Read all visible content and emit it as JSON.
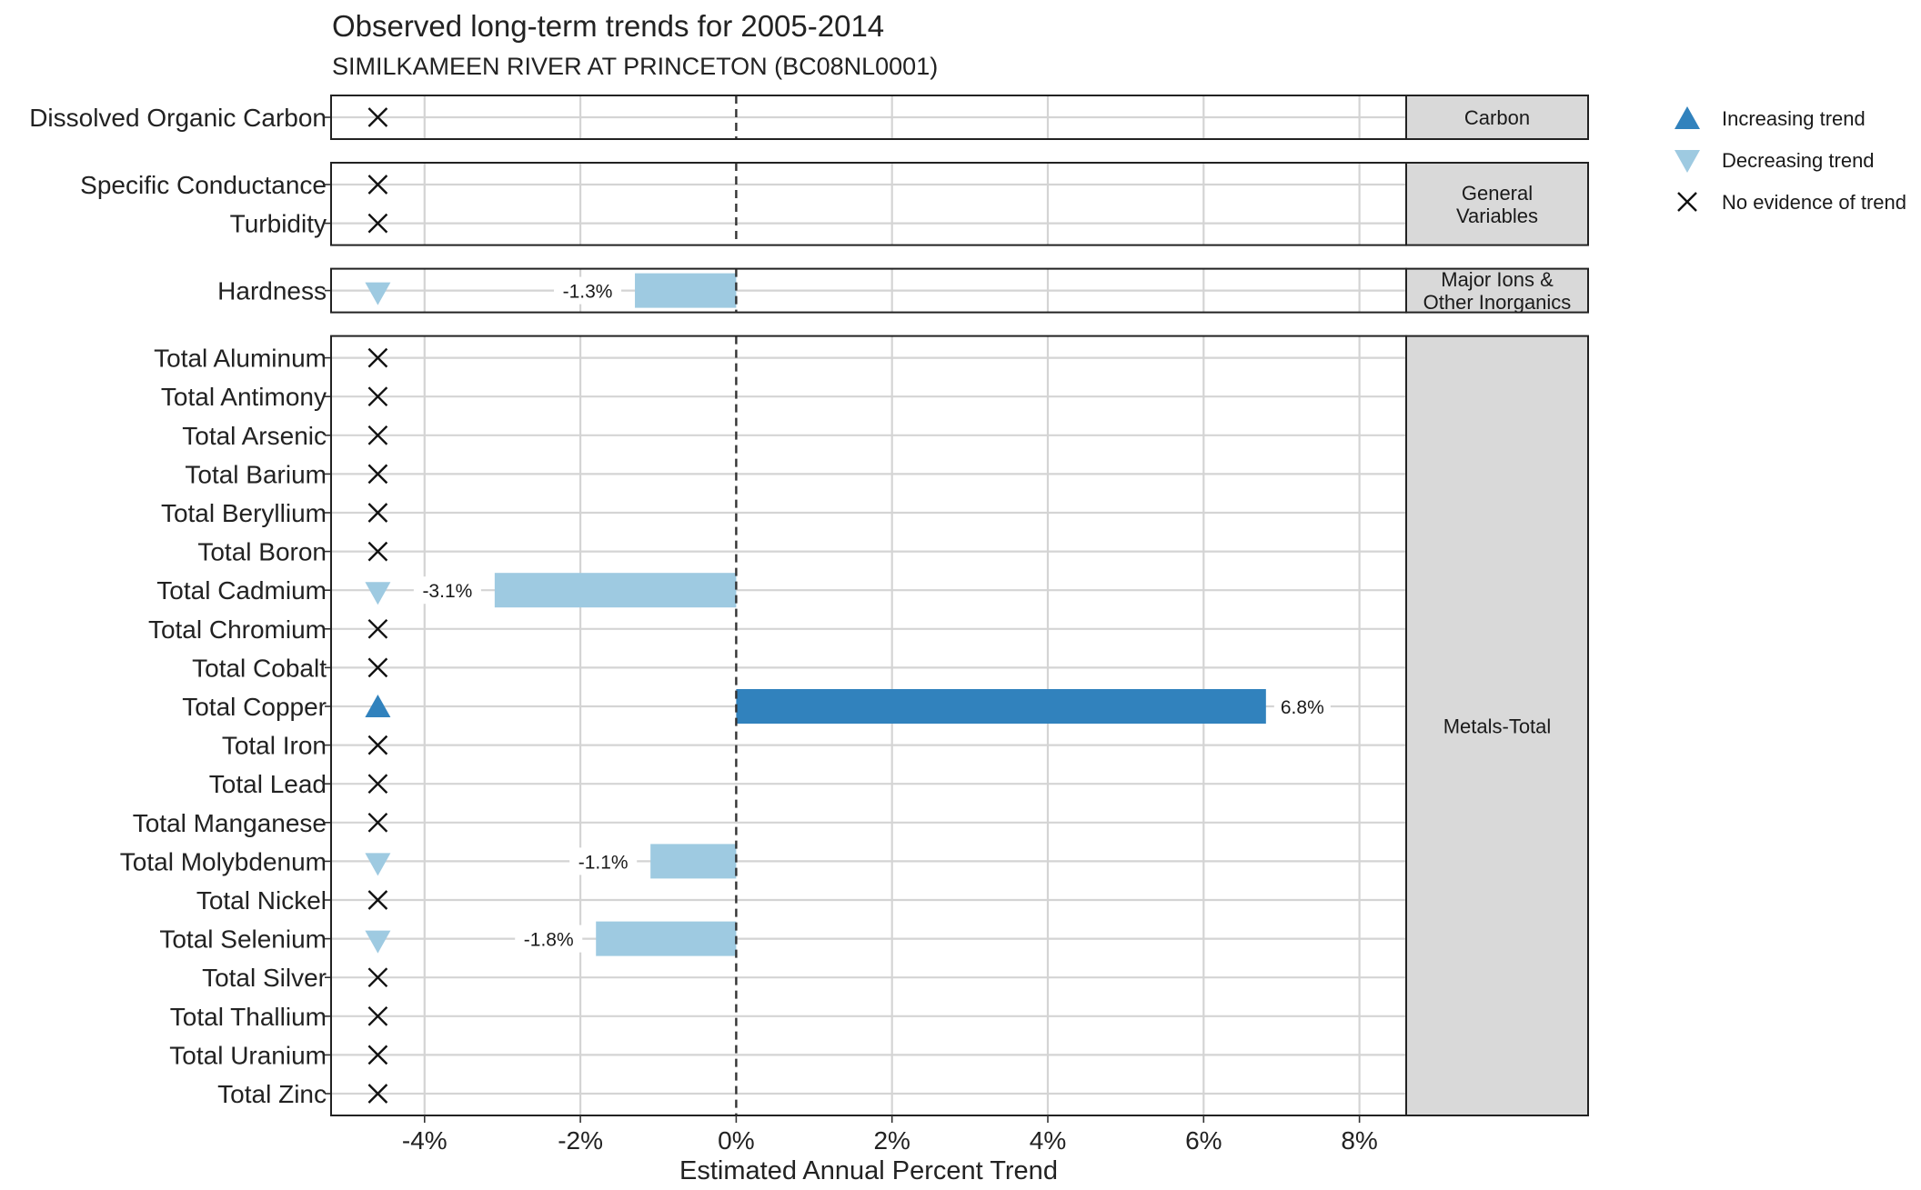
{
  "chart_data": {
    "type": "bar",
    "orientation": "horizontal",
    "title": "Observed long-term trends for 2005-2014",
    "subtitle": "SIMILKAMEEN RIVER AT PRINCETON (BC08NL0001)",
    "xlabel": "Estimated Annual Percent Trend",
    "xlim": [
      -5.2,
      8.6
    ],
    "xticks": [
      -4,
      -2,
      0,
      2,
      4,
      6,
      8
    ],
    "xtick_labels": [
      "-4%",
      "-2%",
      "0%",
      "2%",
      "4%",
      "6%",
      "8%"
    ],
    "reference_line": 0,
    "grid": true,
    "colors": {
      "increasing": "#3182bd",
      "decreasing": "#9ecae1",
      "no_trend": "#111111"
    },
    "panels": [
      {
        "label": "Carbon",
        "rows": [
          {
            "variable": "Dissolved Organic Carbon",
            "trend": "none",
            "value": null,
            "label": ""
          }
        ]
      },
      {
        "label": "General Variables",
        "rows": [
          {
            "variable": "Specific Conductance",
            "trend": "none",
            "value": null,
            "label": ""
          },
          {
            "variable": "Turbidity",
            "trend": "none",
            "value": null,
            "label": ""
          }
        ]
      },
      {
        "label": "Major Ions & Other Inorganics",
        "rows": [
          {
            "variable": "Hardness",
            "trend": "decreasing",
            "value": -1.3,
            "label": "-1.3%"
          }
        ]
      },
      {
        "label": "Metals-Total",
        "rows": [
          {
            "variable": "Total Aluminum",
            "trend": "none",
            "value": null,
            "label": ""
          },
          {
            "variable": "Total Antimony",
            "trend": "none",
            "value": null,
            "label": ""
          },
          {
            "variable": "Total Arsenic",
            "trend": "none",
            "value": null,
            "label": ""
          },
          {
            "variable": "Total Barium",
            "trend": "none",
            "value": null,
            "label": ""
          },
          {
            "variable": "Total Beryllium",
            "trend": "none",
            "value": null,
            "label": ""
          },
          {
            "variable": "Total Boron",
            "trend": "none",
            "value": null,
            "label": ""
          },
          {
            "variable": "Total Cadmium",
            "trend": "decreasing",
            "value": -3.1,
            "label": "-3.1%"
          },
          {
            "variable": "Total Chromium",
            "trend": "none",
            "value": null,
            "label": ""
          },
          {
            "variable": "Total Cobalt",
            "trend": "none",
            "value": null,
            "label": ""
          },
          {
            "variable": "Total Copper",
            "trend": "increasing",
            "value": 6.8,
            "label": "6.8%"
          },
          {
            "variable": "Total Iron",
            "trend": "none",
            "value": null,
            "label": ""
          },
          {
            "variable": "Total Lead",
            "trend": "none",
            "value": null,
            "label": ""
          },
          {
            "variable": "Total Manganese",
            "trend": "none",
            "value": null,
            "label": ""
          },
          {
            "variable": "Total Molybdenum",
            "trend": "decreasing",
            "value": -1.1,
            "label": "-1.1%"
          },
          {
            "variable": "Total Nickel",
            "trend": "none",
            "value": null,
            "label": ""
          },
          {
            "variable": "Total Selenium",
            "trend": "decreasing",
            "value": -1.8,
            "label": "-1.8%"
          },
          {
            "variable": "Total Silver",
            "trend": "none",
            "value": null,
            "label": ""
          },
          {
            "variable": "Total Thallium",
            "trend": "none",
            "value": null,
            "label": ""
          },
          {
            "variable": "Total Uranium",
            "trend": "none",
            "value": null,
            "label": ""
          },
          {
            "variable": "Total Zinc",
            "trend": "none",
            "value": null,
            "label": ""
          }
        ]
      }
    ],
    "legend": {
      "placement": "top-right",
      "items": [
        {
          "trend": "increasing",
          "label": "Increasing trend"
        },
        {
          "trend": "decreasing",
          "label": "Decreasing trend"
        },
        {
          "trend": "none",
          "label": "No evidence of trend"
        }
      ]
    }
  }
}
